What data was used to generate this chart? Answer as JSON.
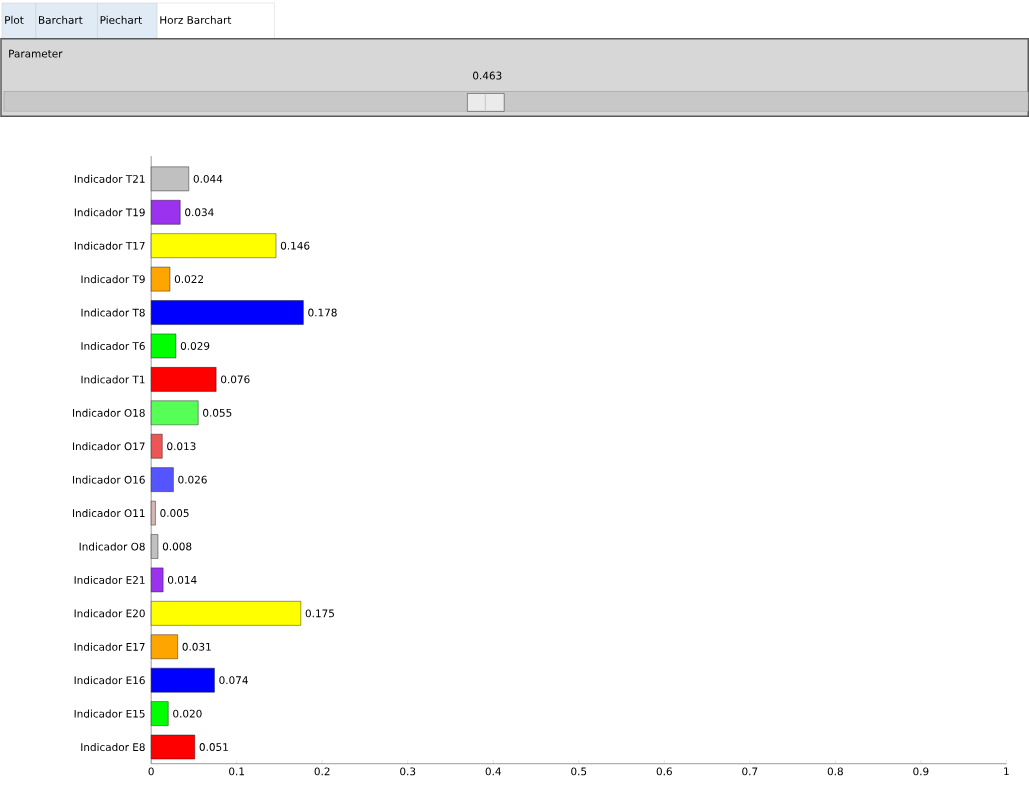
{
  "chart_data": {
    "type": "bar",
    "orientation": "horizontal",
    "categories": [
      "Indicador T21",
      "Indicador T19",
      "Indicador T17",
      "Indicador T9",
      "Indicador T8",
      "Indicador T6",
      "Indicador T1",
      "Indicador O18",
      "Indicador O17",
      "Indicador O16",
      "Indicador O11",
      "Indicador O8",
      "Indicador E21",
      "Indicador E20",
      "Indicador E17",
      "Indicador E16",
      "Indicador E15",
      "Indicador E8"
    ],
    "values": [
      0.044,
      0.034,
      0.146,
      0.022,
      0.178,
      0.029,
      0.076,
      0.055,
      0.013,
      0.026,
      0.005,
      0.008,
      0.014,
      0.175,
      0.031,
      0.074,
      0.02,
      0.051
    ],
    "value_labels": [
      "0.044",
      "0.034",
      "0.146",
      "0.022",
      "0.178",
      "0.029",
      "0.076",
      "0.055",
      "0.013",
      "0.026",
      "0.005",
      "0.008",
      "0.014",
      "0.175",
      "0.031",
      "0.074",
      "0.020",
      "0.051"
    ],
    "colors": [
      "#c0c0c0",
      "#9a32f0",
      "#ffff00",
      "#ffa500",
      "#0000ff",
      "#00ff00",
      "#ff0000",
      "#55ff55",
      "#ee5555",
      "#5555ff",
      "#d8b4b4",
      "#c0c0c0",
      "#9a32f0",
      "#ffff00",
      "#ffa500",
      "#0000ff",
      "#00ff00",
      "#ff0000"
    ],
    "xlim": [
      0,
      1
    ],
    "xticks": [
      0,
      0.1,
      0.2,
      0.3,
      0.4,
      0.5,
      0.6,
      0.7,
      0.8,
      0.9,
      1
    ],
    "annotations": [
      "Plot",
      "Barchart",
      "Piechart",
      "Horz Barchart",
      "Parameter",
      "0.463"
    ]
  }
}
